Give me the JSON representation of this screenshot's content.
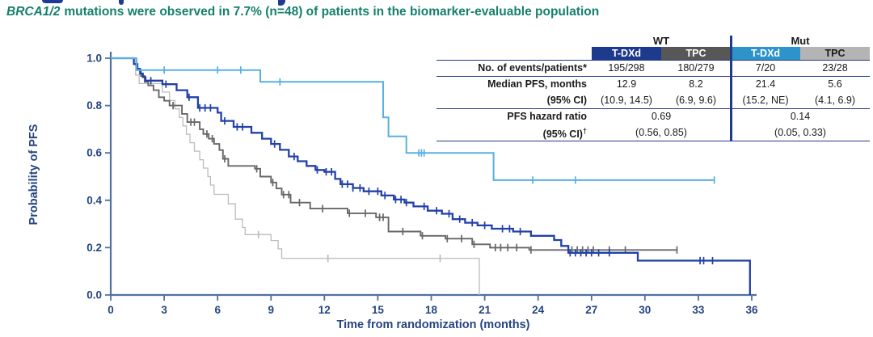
{
  "subtitle": {
    "gene": "BRCA1/2",
    "rest": "mutations were observed in 7.7% (n=48) of patients in the biomarker-evaluable population"
  },
  "colors": {
    "subtitle_teal": "#15806c",
    "table_line_navy": "#1e3a8c",
    "axis_navy": "#51709e",
    "axis_text_navy": "#26457f",
    "wt_tdxd_blue": "#2240a8",
    "wt_tpc_gray": "#676767",
    "mut_tdxd_lightblue": "#58b0e0",
    "mut_tpc_lightgray": "#bcbcbc"
  },
  "table": {
    "group_headers": [
      "WT",
      "Mut"
    ],
    "columns": [
      {
        "label": "T-DXd",
        "bg": "#1e3a8c",
        "fg": "#ffffff"
      },
      {
        "label": "TPC",
        "bg": "#575757",
        "fg": "#ffffff"
      },
      {
        "label": "T-DXd",
        "bg": "#2e93c9",
        "fg": "#ffffff"
      },
      {
        "label": "TPC",
        "bg": "#b4b4b4",
        "fg": "#1a1a1a"
      }
    ],
    "rows": {
      "events": {
        "label": "No. of events/patients*",
        "values": [
          "195/298",
          "180/279",
          "7/20",
          "23/28"
        ]
      },
      "median": {
        "label": "Median PFS, months",
        "values": [
          "12.9",
          "8.2",
          "21.4",
          "5.6"
        ]
      },
      "median_ci": {
        "label": "(95% CI)",
        "values": [
          "(10.9, 14.5)",
          "(6.9, 9.6)",
          "(15.2, NE)",
          "(4.1, 6.9)"
        ]
      },
      "hr": {
        "label": "PFS hazard ratio",
        "values": [
          "0.69",
          "0.14"
        ]
      },
      "hr_ci": {
        "label": "(95% CI)",
        "dagger": "†",
        "values": [
          "(0.56, 0.85)",
          "(0.05, 0.33)"
        ]
      }
    }
  },
  "chart_data": {
    "type": "line",
    "subtype": "kaplan-meier-step",
    "title": "",
    "xlabel": "Time from randomization (months)",
    "ylabel": "Probability of PFS",
    "xlim": [
      0,
      36
    ],
    "ylim": [
      0.0,
      1.0
    ],
    "grid": false,
    "legend": "none (series identified by table column colors)",
    "x_tick_values": [
      0,
      3,
      6,
      9,
      12,
      15,
      18,
      21,
      24,
      27,
      30,
      33,
      36
    ],
    "x_tick_labels": [
      "0",
      "3",
      "6",
      "9",
      "12",
      "15",
      "18",
      "21",
      "24",
      "27",
      "30",
      "33",
      "36"
    ],
    "y_tick_values": [
      0.0,
      0.2,
      0.4,
      0.6,
      0.8,
      1.0
    ],
    "y_tick_labels": [
      "0.0",
      "0.2",
      "0.4",
      "0.6",
      "0.8",
      "1.0"
    ],
    "series": [
      {
        "name": "Mut TPC",
        "color": "#bcbcbc",
        "stroke_width": 1.3,
        "steps": [
          [
            0,
            1
          ],
          [
            1.4,
            0.929
          ],
          [
            1.6,
            0.893
          ],
          [
            2.9,
            0.857
          ],
          [
            3.3,
            0.821
          ],
          [
            3.6,
            0.786
          ],
          [
            3.85,
            0.75
          ],
          [
            4.05,
            0.714
          ],
          [
            4.25,
            0.679
          ],
          [
            4.45,
            0.643
          ],
          [
            4.7,
            0.607
          ],
          [
            5.0,
            0.571
          ],
          [
            5.2,
            0.536
          ],
          [
            5.45,
            0.5
          ],
          [
            5.6,
            0.464
          ],
          [
            5.8,
            0.425
          ],
          [
            6.6,
            0.385
          ],
          [
            7.0,
            0.32
          ],
          [
            7.4,
            0.285
          ],
          [
            7.55,
            0.255
          ],
          [
            9.0,
            0.23
          ],
          [
            9.4,
            0.195
          ],
          [
            9.6,
            0.155
          ],
          [
            20.7,
            0
          ]
        ],
        "censors": [
          8.3,
          12.2,
          18.5
        ]
      },
      {
        "name": "WT TPC",
        "color": "#676767",
        "stroke_width": 1.9,
        "steps": [
          [
            0,
            1
          ],
          [
            1.3,
            0.975
          ],
          [
            1.5,
            0.95
          ],
          [
            1.7,
            0.925
          ],
          [
            1.9,
            0.9
          ],
          [
            2.1,
            0.885
          ],
          [
            2.4,
            0.865
          ],
          [
            2.7,
            0.835
          ],
          [
            3.0,
            0.82
          ],
          [
            3.3,
            0.8
          ],
          [
            4.0,
            0.765
          ],
          [
            4.3,
            0.73
          ],
          [
            5.0,
            0.7
          ],
          [
            5.2,
            0.68
          ],
          [
            5.5,
            0.66
          ],
          [
            5.8,
            0.638
          ],
          [
            6.1,
            0.612
          ],
          [
            6.3,
            0.575
          ],
          [
            6.6,
            0.545
          ],
          [
            8.1,
            0.533
          ],
          [
            8.4,
            0.5
          ],
          [
            9.0,
            0.475
          ],
          [
            9.3,
            0.45
          ],
          [
            9.6,
            0.424
          ],
          [
            10.1,
            0.39
          ],
          [
            11.2,
            0.365
          ],
          [
            13.3,
            0.345
          ],
          [
            14.9,
            0.328
          ],
          [
            15.6,
            0.268
          ],
          [
            17.4,
            0.25
          ],
          [
            18.8,
            0.238
          ],
          [
            20.3,
            0.214
          ],
          [
            21.3,
            0.2
          ],
          [
            23.5,
            0.19
          ],
          [
            31.8,
            0.19
          ]
        ],
        "censors": [
          3.5,
          4.5,
          4.7,
          5.4,
          5.7,
          6.4,
          8.2,
          9.1,
          9.7,
          10.0,
          10.6,
          11.9,
          13.4,
          14.3,
          15.1,
          15.3,
          16.4,
          17.5,
          18.9,
          19.7,
          20.4,
          21.6,
          21.9,
          22.3,
          22.8,
          23.6,
          25.9,
          26.2,
          26.5,
          26.8,
          27.1,
          28.0,
          28.9,
          31.8
        ]
      },
      {
        "name": "WT T-DXd",
        "color": "#2240a8",
        "stroke_width": 2.3,
        "steps": [
          [
            0,
            1
          ],
          [
            1.3,
            0.975
          ],
          [
            1.5,
            0.955
          ],
          [
            1.65,
            0.935
          ],
          [
            1.8,
            0.92
          ],
          [
            1.95,
            0.905
          ],
          [
            2.9,
            0.89
          ],
          [
            3.7,
            0.865
          ],
          [
            4.3,
            0.835
          ],
          [
            4.9,
            0.79
          ],
          [
            6.0,
            0.77
          ],
          [
            6.2,
            0.735
          ],
          [
            6.9,
            0.71
          ],
          [
            7.9,
            0.685
          ],
          [
            8.5,
            0.66
          ],
          [
            9.0,
            0.638
          ],
          [
            9.5,
            0.613
          ],
          [
            10.0,
            0.585
          ],
          [
            10.5,
            0.565
          ],
          [
            11.0,
            0.545
          ],
          [
            11.5,
            0.528
          ],
          [
            12.0,
            0.52
          ],
          [
            12.6,
            0.49
          ],
          [
            12.9,
            0.468
          ],
          [
            13.6,
            0.452
          ],
          [
            14.2,
            0.438
          ],
          [
            15.2,
            0.42
          ],
          [
            15.9,
            0.403
          ],
          [
            16.5,
            0.39
          ],
          [
            17.0,
            0.374
          ],
          [
            17.8,
            0.356
          ],
          [
            18.6,
            0.343
          ],
          [
            19.2,
            0.32
          ],
          [
            19.9,
            0.305
          ],
          [
            20.6,
            0.294
          ],
          [
            21.4,
            0.28
          ],
          [
            22.6,
            0.268
          ],
          [
            23.6,
            0.25
          ],
          [
            24.9,
            0.232
          ],
          [
            25.3,
            0.207
          ],
          [
            25.7,
            0.178
          ],
          [
            29.6,
            0.145
          ],
          [
            35.9,
            0
          ]
        ],
        "censors": [
          2.25,
          3.1,
          4.4,
          5.0,
          5.3,
          5.6,
          6.4,
          7.1,
          7.4,
          9.2,
          10.3,
          11.6,
          12.1,
          12.4,
          13.0,
          13.3,
          13.6,
          14.0,
          14.5,
          15.0,
          15.4,
          16.0,
          16.3,
          16.6,
          17.6,
          18.3,
          19.0,
          19.6,
          20.3,
          21.0,
          22.0,
          22.4,
          23.0,
          25.8,
          26.1,
          26.4,
          26.7,
          27.0,
          27.4,
          28.0,
          33.1,
          33.3,
          33.8
        ]
      },
      {
        "name": "Mut T-DXd",
        "color": "#58b0e0",
        "stroke_width": 2.0,
        "steps": [
          [
            0,
            1
          ],
          [
            1.45,
            0.95
          ],
          [
            8.4,
            0.9
          ],
          [
            15.3,
            0.75
          ],
          [
            15.6,
            0.67
          ],
          [
            16.6,
            0.6
          ],
          [
            21.5,
            0.485
          ],
          [
            33.9,
            0.485
          ]
        ],
        "censors": [
          3.0,
          6.0,
          7.3,
          9.5,
          17.3,
          17.45,
          17.6,
          23.7,
          26.1,
          33.9
        ]
      }
    ]
  }
}
